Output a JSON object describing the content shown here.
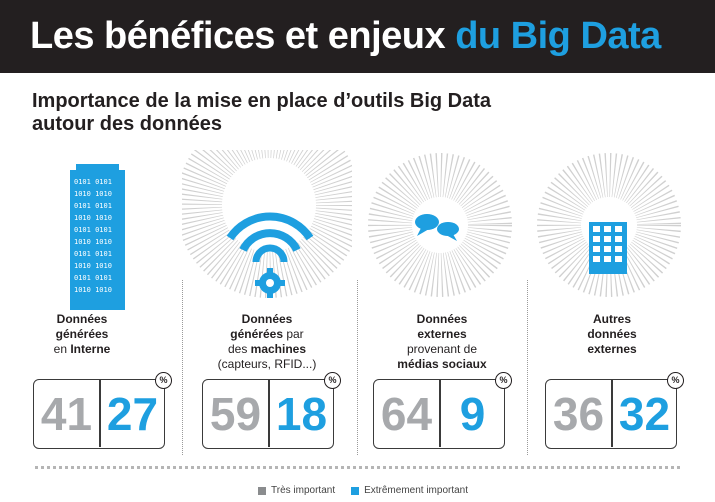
{
  "header": {
    "title_part1": "Les bénéfices et enjeux ",
    "title_part2": "du Big Data"
  },
  "subtitle_line1": "Importance de la mise en place d’outils Big Data",
  "subtitle_line2": "autour des données",
  "icons": [
    "building-tower-icon",
    "wifi-gear-icon",
    "chat-bubbles-icon",
    "office-building-icon"
  ],
  "colors": {
    "tres_important": "#a7a9ac",
    "extremement_important": "#1e9fe0",
    "banner_bg": "#231f20"
  },
  "labels": {
    "c1": {
      "l1": "Données",
      "l2": "générées",
      "l3a": "en ",
      "l3b": "Interne"
    },
    "c2": {
      "l1": "Données",
      "l2a": "générées",
      "l2b": " par",
      "l3a": "des ",
      "l3b": "machines",
      "l4": "(capteurs, RFID...)"
    },
    "c3": {
      "l1": "Données",
      "l2": "externes",
      "l3": "provenant de",
      "l4": "médias sociaux"
    },
    "c4": {
      "l1": "Autres",
      "l2": "données",
      "l3": "externes"
    }
  },
  "percent_symbol": "%",
  "chart_data": {
    "type": "table",
    "unit": "%",
    "categories": [
      "Données générées en Interne",
      "Données générées par des machines (capteurs, RFID...)",
      "Données externes provenant de médias sociaux",
      "Autres données externes"
    ],
    "series": [
      {
        "name": "Très important",
        "values": [
          41,
          59,
          64,
          36
        ]
      },
      {
        "name": "Extrêmement important",
        "values": [
          27,
          18,
          9,
          32
        ]
      }
    ],
    "legend_placement": "bottom"
  },
  "legend": {
    "tres": "Très important",
    "extreme": "Extrêmement important"
  }
}
